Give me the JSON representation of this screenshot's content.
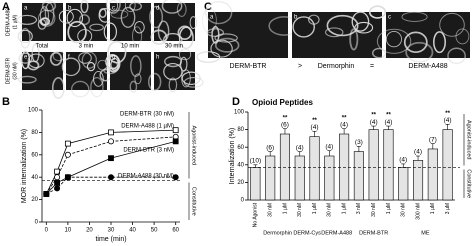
{
  "panels": {
    "A": {
      "label": "A",
      "row_labels": [
        [
          "DERM-A488",
          "(1 µM)"
        ],
        [
          "DERM-BTR",
          "(30 nM)"
        ]
      ],
      "column_labels": [
        "Total",
        "3 min",
        "10 min",
        "30 min"
      ],
      "image_letters": [
        "a",
        "b",
        "c",
        "d",
        "e",
        "f",
        "g",
        "h"
      ]
    },
    "C": {
      "label": "C",
      "image_letters": [
        "a",
        "b",
        "c"
      ],
      "caption": [
        "DERM-BTR",
        ">",
        "Dermorphin",
        "=",
        "DERM-A488"
      ]
    }
  },
  "chart_data": [
    {
      "panel_label": "B",
      "type": "line",
      "y_label": "MOR internalization (%)",
      "x_label": "time (min)",
      "xlim": [
        -2,
        62
      ],
      "ylim": [
        0,
        100
      ],
      "xticks": [
        0,
        10,
        20,
        30,
        40,
        50,
        60
      ],
      "yticks": [
        0,
        20,
        40,
        60,
        80,
        100
      ],
      "x": [
        0,
        5,
        10,
        30,
        60
      ],
      "reference_line": 37,
      "annotations": [
        "Agonist-induced",
        "Constitutive"
      ],
      "series": [
        {
          "name": "DERM-BTR (30 nM)",
          "color": "#000000",
          "marker": "open-square",
          "values": [
            25,
            45,
            70,
            80,
            82
          ]
        },
        {
          "name": "DERM-A488 (1 µM)",
          "color": "#000000",
          "marker": "open-circle",
          "values": [
            25,
            40,
            60,
            72,
            76
          ]
        },
        {
          "name": "DERM-BTR (3 nM)",
          "color": "#000000",
          "marker": "filled-square",
          "values": [
            25,
            35,
            40,
            57,
            72
          ]
        },
        {
          "name": "DERM-A488 (30 nM)",
          "color": "#000000",
          "marker": "filled-circle",
          "values": [
            25,
            30,
            40,
            40,
            40
          ]
        }
      ]
    },
    {
      "panel_label": "D",
      "type": "bar",
      "title": "Opioid Peptides",
      "y_label": "Internalization (%)",
      "ylim": [
        0,
        100
      ],
      "yticks": [
        0,
        20,
        40,
        60,
        80,
        100
      ],
      "color": "#e4e4e4",
      "reference_line": 37,
      "annotations": [
        "Agonist-induced",
        "Constitutive"
      ],
      "groups": [
        {
          "categories": [
            "No Agonist"
          ],
          "values": [
            37
          ],
          "errors": [
            3
          ],
          "n_labels": [
            "(10)"
          ],
          "significance": [
            null
          ]
        },
        {
          "name": "Dermorphin",
          "categories": [
            "30 nM",
            "1 µM"
          ],
          "values": [
            50,
            75
          ],
          "errors": [
            5,
            6
          ],
          "n_labels": [
            "(6)",
            "(6)"
          ],
          "significance": [
            null,
            "**"
          ]
        },
        {
          "name": "DERM-Cys",
          "categories": [
            "30 nM",
            "1 µM"
          ],
          "values": [
            50,
            72
          ],
          "errors": [
            5,
            6
          ],
          "n_labels": [
            "(4)",
            "(4)"
          ],
          "significance": [
            null,
            "**"
          ]
        },
        {
          "name": "DERM-A488",
          "categories": [
            "30 nM",
            "1 µM"
          ],
          "values": [
            50,
            75
          ],
          "errors": [
            6,
            6
          ],
          "n_labels": [
            "(4)",
            "(4)"
          ],
          "significance": [
            null,
            "**"
          ]
        },
        {
          "name": "DERM-BTR",
          "categories": [
            "3 nM",
            "30 nM",
            "1 µM"
          ],
          "values": [
            55,
            80,
            80
          ],
          "errors": [
            6,
            4,
            4
          ],
          "n_labels": [
            "(3)",
            "(4)",
            "(4)"
          ],
          "significance": [
            null,
            "**",
            "**"
          ]
        },
        {
          "name": "ME",
          "categories": [
            "30 nM",
            "300 nM",
            "1 µM",
            "3 µM"
          ],
          "values": [
            37,
            45,
            58,
            80
          ],
          "errors": [
            4,
            5,
            6,
            6
          ],
          "n_labels": [
            "(4)",
            "(4)",
            "(7)",
            "(4)"
          ],
          "significance": [
            null,
            null,
            null,
            "**"
          ]
        }
      ]
    }
  ]
}
